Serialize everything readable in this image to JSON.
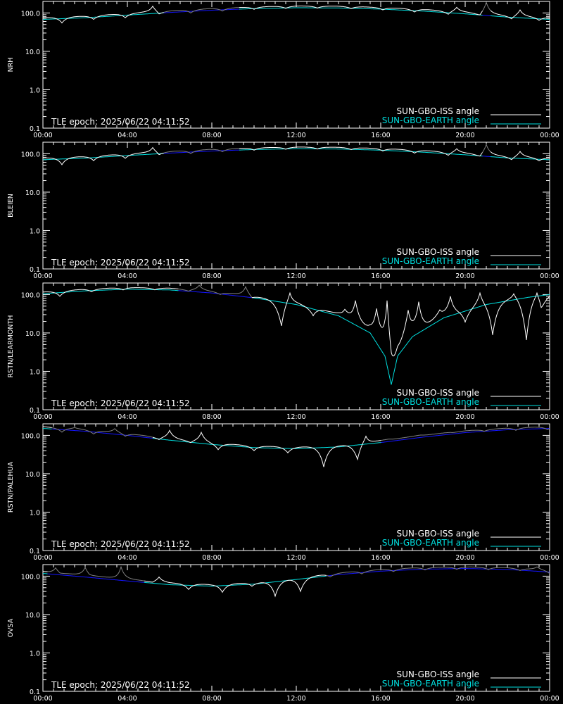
{
  "chart_data": {
    "type": "line",
    "y_scale": "log",
    "ylim": [
      0.1,
      200
    ],
    "xlim": [
      "00:00",
      "24:00"
    ],
    "x_ticks": [
      "00:00",
      "04:00",
      "08:00",
      "12:00",
      "16:00",
      "20:00",
      "00:00"
    ],
    "y_ticks": [
      "0.1",
      "1.0",
      "10.0",
      "100.0"
    ],
    "legend_position": "bottom-right",
    "legend": [
      {
        "label": "SUN-GBO-ISS angle",
        "color": "#ffffff"
      },
      {
        "label": "SUN-GBO-EARTH angle",
        "color": "#00e0e0"
      }
    ],
    "colors": {
      "iss_visible": "#ffffff",
      "iss_hidden": "#7f7f7f",
      "earth_visible": "#00e0e0",
      "earth_hidden": "#1414ff",
      "axes": "#ffffff"
    },
    "panels": [
      {
        "ylabel": "NRH",
        "epoch": "TLE epoch: 2025/06/22 04:11:52",
        "earth_angle": [
          [
            0,
            68
          ],
          [
            2,
            75
          ],
          [
            4,
            88
          ],
          [
            6,
            103
          ],
          [
            8,
            118
          ],
          [
            10,
            130
          ],
          [
            12,
            137
          ],
          [
            14,
            135
          ],
          [
            16,
            126
          ],
          [
            18,
            112
          ],
          [
            20,
            95
          ],
          [
            22,
            78
          ],
          [
            24,
            68
          ]
        ],
        "iss_dips": [
          [
            0.9,
            55
          ],
          [
            2.4,
            68
          ],
          [
            3.9,
            75
          ],
          [
            5.5,
            85
          ],
          [
            7.0,
            100
          ],
          [
            8.5,
            112
          ],
          [
            10.0,
            124
          ],
          [
            11.5,
            132
          ],
          [
            13.0,
            134
          ],
          [
            14.6,
            130
          ],
          [
            16.1,
            120
          ],
          [
            17.6,
            106
          ],
          [
            19.2,
            88
          ],
          [
            20.7,
            75
          ],
          [
            22.2,
            66
          ],
          [
            23.5,
            64
          ]
        ],
        "iss_peaks": [
          [
            5.2,
            150
          ],
          [
            19.6,
            140
          ],
          [
            21.0,
            190
          ],
          [
            22.6,
            120
          ]
        ],
        "visible_hours": [
          [
            0.0,
            5.7
          ],
          [
            9.3,
            20.8
          ],
          [
            21.2,
            24.0
          ]
        ]
      },
      {
        "ylabel": "BLEIEN",
        "epoch": "TLE epoch: 2025/06/22 04:11:52",
        "earth_angle": [
          [
            0,
            70
          ],
          [
            2,
            77
          ],
          [
            4,
            90
          ],
          [
            6,
            104
          ],
          [
            8,
            118
          ],
          [
            10,
            129
          ],
          [
            12,
            135
          ],
          [
            14,
            133
          ],
          [
            16,
            124
          ],
          [
            18,
            110
          ],
          [
            20,
            94
          ],
          [
            22,
            78
          ],
          [
            24,
            70
          ]
        ],
        "iss_dips": [
          [
            0.9,
            52
          ],
          [
            2.4,
            66
          ],
          [
            3.9,
            76
          ],
          [
            5.5,
            86
          ],
          [
            7.0,
            101
          ],
          [
            8.5,
            113
          ],
          [
            10.0,
            124
          ],
          [
            11.5,
            131
          ],
          [
            13.0,
            133
          ],
          [
            14.6,
            128
          ],
          [
            16.1,
            118
          ],
          [
            17.6,
            104
          ],
          [
            19.2,
            87
          ],
          [
            20.7,
            74
          ],
          [
            22.2,
            66
          ],
          [
            23.5,
            65
          ]
        ],
        "iss_peaks": [
          [
            5.2,
            145
          ],
          [
            19.6,
            135
          ],
          [
            21.0,
            175
          ],
          [
            22.6,
            115
          ]
        ],
        "visible_hours": [
          [
            0.0,
            5.7
          ],
          [
            9.3,
            20.8
          ],
          [
            21.2,
            24.0
          ]
        ]
      },
      {
        "ylabel": "RSTN/LEARMONTH",
        "epoch": "TLE epoch: 2025/06/22 04:11:52",
        "earth_angle": [
          [
            0,
            105
          ],
          [
            2,
            125
          ],
          [
            4,
            138
          ],
          [
            6,
            132
          ],
          [
            8,
            110
          ],
          [
            10,
            82
          ],
          [
            12,
            55
          ],
          [
            14,
            28
          ],
          [
            15.5,
            10
          ],
          [
            16.2,
            2.5
          ],
          [
            16.5,
            0.45
          ],
          [
            16.8,
            2.5
          ],
          [
            17.5,
            8
          ],
          [
            19,
            25
          ],
          [
            21,
            55
          ],
          [
            23,
            85
          ],
          [
            24,
            100
          ]
        ],
        "iss_dips": [
          [
            0.8,
            90
          ],
          [
            2.3,
            118
          ],
          [
            3.8,
            132
          ],
          [
            5.3,
            133
          ],
          [
            6.9,
            120
          ],
          [
            8.4,
            100
          ],
          [
            9.9,
            72
          ],
          [
            11.3,
            12
          ],
          [
            12.8,
            28
          ],
          [
            14.3,
            40
          ],
          [
            15.8,
            42
          ],
          [
            17.3,
            38
          ],
          [
            18.8,
            38
          ],
          [
            20.0,
            18
          ],
          [
            21.3,
            8
          ],
          [
            22.9,
            4.5
          ],
          [
            23.6,
            30
          ]
        ],
        "iss_peaks": [
          [
            7.4,
            175
          ],
          [
            9.6,
            160
          ],
          [
            11.7,
            110
          ],
          [
            14.8,
            70
          ],
          [
            16.3,
            70
          ],
          [
            17.8,
            65
          ],
          [
            19.3,
            90
          ],
          [
            20.7,
            110
          ],
          [
            22.3,
            105
          ],
          [
            23.4,
            110
          ]
        ],
        "visible_hours": [
          [
            0.0,
            6.4
          ],
          [
            9.9,
            24.0
          ]
        ]
      },
      {
        "ylabel": "RSTN/PALEHUA",
        "epoch": "TLE epoch: 2025/06/22 04:11:52",
        "earth_angle": [
          [
            0,
            152
          ],
          [
            2,
            128
          ],
          [
            4,
            100
          ],
          [
            6,
            75
          ],
          [
            8,
            58
          ],
          [
            10,
            48
          ],
          [
            12,
            45
          ],
          [
            14,
            50
          ],
          [
            16,
            65
          ],
          [
            18,
            90
          ],
          [
            20,
            118
          ],
          [
            22,
            140
          ],
          [
            24,
            152
          ]
        ],
        "iss_dips": [
          [
            0.9,
            120
          ],
          [
            2.4,
            108
          ],
          [
            3.9,
            92
          ],
          [
            5.5,
            75
          ],
          [
            7.0,
            62
          ],
          [
            8.3,
            42
          ],
          [
            10.0,
            40
          ],
          [
            11.6,
            35
          ],
          [
            13.3,
            15
          ],
          [
            14.9,
            20
          ],
          [
            16.4,
            80
          ],
          [
            17.9,
            102
          ],
          [
            19.4,
            118
          ],
          [
            20.9,
            128
          ],
          [
            22.4,
            135
          ],
          [
            23.9,
            140
          ]
        ],
        "iss_peaks": [
          [
            1.5,
            160
          ],
          [
            3.4,
            150
          ],
          [
            6.0,
            135
          ],
          [
            7.5,
            120
          ],
          [
            15.3,
            95
          ]
        ],
        "visible_hours": [
          [
            0.0,
            0.4
          ],
          [
            5.2,
            16.0
          ]
        ]
      },
      {
        "ylabel": "OVSA",
        "epoch": "TLE epoch: 2025/06/22 04:11:52",
        "earth_angle": [
          [
            0,
            118
          ],
          [
            2,
            95
          ],
          [
            4,
            75
          ],
          [
            6,
            60
          ],
          [
            8,
            55
          ],
          [
            10,
            62
          ],
          [
            12,
            82
          ],
          [
            14,
            110
          ],
          [
            16,
            135
          ],
          [
            18,
            152
          ],
          [
            20,
            158
          ],
          [
            22,
            150
          ],
          [
            24,
            128
          ]
        ],
        "iss_dips": [
          [
            0.8,
            105
          ],
          [
            2.2,
            92
          ],
          [
            3.6,
            80
          ],
          [
            5.2,
            65
          ],
          [
            6.9,
            45
          ],
          [
            8.5,
            38
          ],
          [
            9.9,
            55
          ],
          [
            11.0,
            30
          ],
          [
            12.2,
            40
          ],
          [
            13.6,
            95
          ],
          [
            15.1,
            115
          ],
          [
            16.6,
            132
          ],
          [
            18.1,
            145
          ],
          [
            19.6,
            150
          ],
          [
            21.1,
            148
          ],
          [
            22.6,
            140
          ],
          [
            24.0,
            115
          ]
        ],
        "iss_peaks": [
          [
            0.6,
            165
          ],
          [
            2.0,
            170
          ],
          [
            3.7,
            175
          ],
          [
            5.5,
            95
          ],
          [
            23.4,
            175
          ]
        ],
        "visible_hours": [
          [
            0.0,
            0.2
          ],
          [
            4.8,
            13.4
          ]
        ]
      }
    ]
  }
}
